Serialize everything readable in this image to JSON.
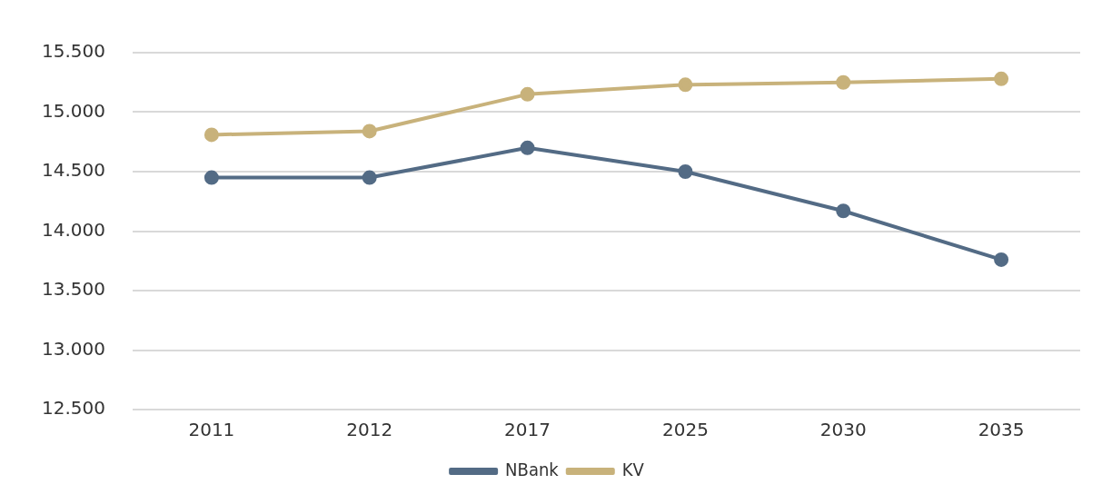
{
  "chart_data": {
    "type": "line",
    "categories": [
      "2011",
      "2012",
      "2017",
      "2025",
      "2030",
      "2035"
    ],
    "series": [
      {
        "name": "NBank",
        "color": "#536b85",
        "values": [
          14450,
          14450,
          14700,
          14500,
          14170,
          13760
        ]
      },
      {
        "name": "KV",
        "color": "#c8b27b",
        "values": [
          14810,
          14840,
          15150,
          15230,
          15250,
          15280
        ]
      }
    ],
    "ylim": [
      12500,
      15500
    ],
    "yticks": [
      {
        "value": 12500,
        "label": "12.500"
      },
      {
        "value": 13000,
        "label": "13.000"
      },
      {
        "value": 13500,
        "label": "13.500"
      },
      {
        "value": 14000,
        "label": "14.000"
      },
      {
        "value": 14500,
        "label": "14.500"
      },
      {
        "value": 15000,
        "label": "15.000"
      },
      {
        "value": 15500,
        "label": "15.500"
      }
    ],
    "grid": "y",
    "legend": "bottom",
    "marker": "circle",
    "line_style": "solid"
  }
}
